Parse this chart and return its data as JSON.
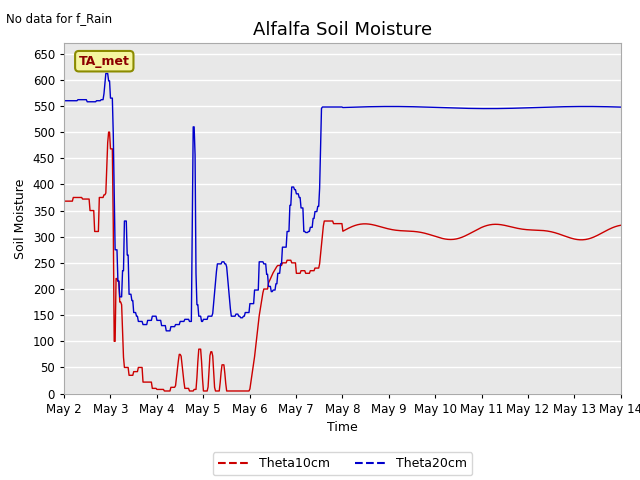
{
  "title": "Alfalfa Soil Moisture",
  "subtitle": "No data for f_Rain",
  "ylabel": "Soil Moisture",
  "xlabel": "Time",
  "annotation": "TA_met",
  "ylim": [
    0,
    670
  ],
  "yticks": [
    0,
    50,
    100,
    150,
    200,
    250,
    300,
    350,
    400,
    450,
    500,
    550,
    600,
    650
  ],
  "x_tick_labels": [
    "May 2",
    "May 3",
    "May 4",
    "May 5",
    "May 6",
    "May 7",
    "May 8",
    "May 9",
    "May 10",
    "May 11",
    "May 12",
    "May 13",
    "May 14"
  ],
  "legend_labels": [
    "Theta10cm",
    "Theta20cm"
  ],
  "line_colors": [
    "#cc0000",
    "#0000cc"
  ],
  "bg_color": "#ffffff",
  "plot_bg_color": "#e8e8e8",
  "grid_color": "#ffffff",
  "title_fontsize": 13,
  "label_fontsize": 9,
  "tick_fontsize": 8.5
}
